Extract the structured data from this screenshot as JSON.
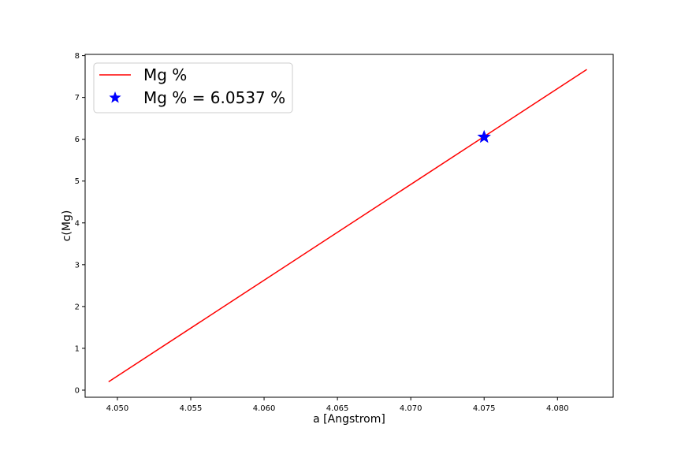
{
  "chart_data": {
    "type": "line",
    "xlabel": "a [Angstrom]",
    "ylabel": "c(Mg)",
    "xlim": [
      4.0478,
      4.0838
    ],
    "ylim": [
      -0.17,
      8.03
    ],
    "x_ticks": [
      4.05,
      4.055,
      4.06,
      4.065,
      4.07,
      4.075,
      4.08
    ],
    "x_tick_labels": [
      "4.050",
      "4.055",
      "4.060",
      "4.065",
      "4.070",
      "4.075",
      "4.080"
    ],
    "y_ticks": [
      0,
      1,
      2,
      3,
      4,
      5,
      6,
      7,
      8
    ],
    "y_tick_labels": [
      "0",
      "1",
      "2",
      "3",
      "4",
      "5",
      "6",
      "7",
      "8"
    ],
    "grid": false,
    "legend_position": "top-left",
    "series": [
      {
        "name": "Mg %",
        "kind": "line",
        "color": "#ff0000",
        "x": [
          4.0494,
          4.082
        ],
        "y": [
          0.2,
          7.67
        ]
      },
      {
        "name": "Mg % = 6.0537 %",
        "kind": "marker",
        "marker": "star",
        "color": "#0000ff",
        "x": [
          4.075
        ],
        "y": [
          6.0537
        ]
      }
    ]
  }
}
